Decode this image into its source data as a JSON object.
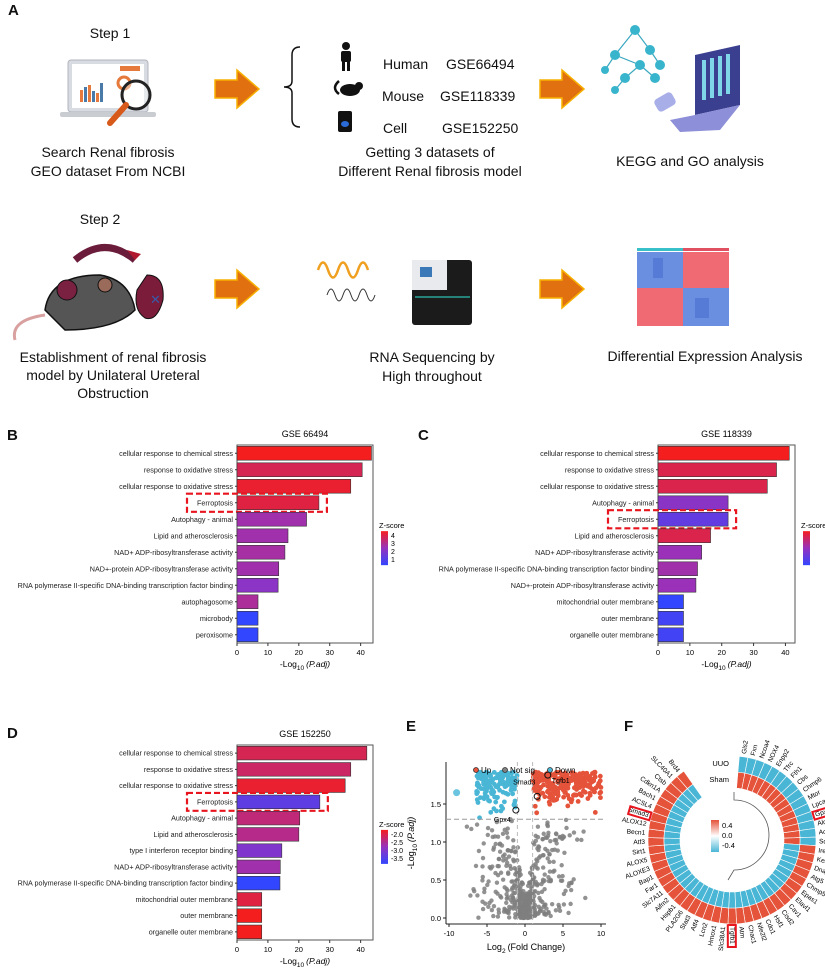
{
  "panel_labels": {
    "a": "A",
    "b": "B",
    "c": "C",
    "d": "D",
    "e": "E",
    "f": "F"
  },
  "workflow": {
    "step1": "Step 1",
    "step2": "Step 2",
    "search_line1": "Search Renal fibrosis",
    "search_line2": "GEO dataset From NCBI",
    "datasets": [
      {
        "organism": "Human",
        "id": "GSE66494",
        "icon": "human-icon"
      },
      {
        "organism": "Mouse",
        "id": "GSE118339",
        "icon": "mouse-icon"
      },
      {
        "organism": "Cell",
        "id": "GSE152250",
        "icon": "cell-dish-icon"
      }
    ],
    "datasets_line1": "Getting 3 datasets of",
    "datasets_line2": "Different Renal fibrosis model",
    "kegg": "KEGG and GO analysis",
    "uuo_line1": "Establishment of renal fibrosis",
    "uuo_line2": "model by Unilateral Ureteral",
    "uuo_line3": "Obstruction",
    "rnaseq_line1": "RNA Sequencing by",
    "rnaseq_line2": "High throughout",
    "dea": "Differential Expression Analysis",
    "arrow_color": "#e07010"
  },
  "chart_data": [
    {
      "id": "B",
      "type": "bar",
      "orientation": "horizontal",
      "title": "GSE 66494",
      "xlabel_main": "-Log",
      "xlabel_sub": "10",
      "xlabel_tail": "(P.adj)",
      "xlim": [
        0,
        44
      ],
      "xticks": [
        "0",
        "10",
        "20",
        "30",
        "40"
      ],
      "categories": [
        "cellular response to chemical stress",
        "response to oxidative stress",
        "cellular response to oxidative stress",
        "Ferroptosis",
        "Autophagy - animal",
        "Lipid and atherosclerosis",
        "NAD+ ADP-ribosyltransferase activity",
        "NAD+-protein ADP-ribosyltransferase activity",
        "RNA polymerase II-specific DNA-binding transcription factor binding",
        "autophagosome",
        "microbody",
        "peroxisome"
      ],
      "values": [
        43.5,
        40.5,
        36.8,
        26.5,
        22.5,
        16.5,
        15.5,
        13.5,
        13.3,
        6.8,
        6.8,
        6.8
      ],
      "zscore": [
        4.6,
        4.0,
        4.4,
        4.2,
        3.0,
        3.0,
        3.1,
        3.0,
        2.6,
        3.2,
        1.0,
        1.0
      ],
      "legend_title": "Z-score",
      "legend_ticks": [
        "4",
        "3",
        "2",
        "1"
      ],
      "zlim": [
        1,
        4.6
      ],
      "highlight": "Ferroptosis"
    },
    {
      "id": "C",
      "type": "bar",
      "orientation": "horizontal",
      "title": "GSE 118339",
      "xlabel_main": "-Log",
      "xlabel_sub": "10",
      "xlabel_tail": "(P.adj)",
      "xlim": [
        0,
        43
      ],
      "xticks": [
        "0",
        "10",
        "20",
        "30",
        "40"
      ],
      "categories": [
        "cellular response to chemical stress",
        "response to oxidative stress",
        "cellular response to oxidative stress",
        "Autophagy - animal",
        "Ferroptosis",
        "Lipid and atherosclerosis",
        "NAD+ ADP-ribosyltransferase activity",
        "RNA polymerase II-specific DNA-binding transcription factor binding",
        "NAD+-protein ADP-ribosyltransferase activity",
        "mitochondrial outer membrane",
        "outer membrane",
        "organelle outer membrane"
      ],
      "values": [
        41.2,
        37.2,
        34.3,
        22.0,
        22.0,
        16.5,
        13.7,
        12.4,
        11.9,
        8.0,
        8.0,
        8.0
      ],
      "zscore": [
        6.0,
        5.3,
        5.3,
        3.2,
        2.2,
        5.3,
        3.6,
        3.8,
        3.6,
        1.0,
        1.4,
        1.4
      ],
      "legend_title": "Z-score",
      "legend_ticks": [],
      "zlim": [
        1,
        6
      ],
      "highlight": "Ferroptosis"
    },
    {
      "id": "D",
      "type": "bar",
      "orientation": "horizontal",
      "title": "GSE 152250",
      "xlabel_main": "-Log",
      "xlabel_sub": "10",
      "xlabel_tail": "(P.adj)",
      "xlim": [
        0,
        44
      ],
      "xticks": [
        "0",
        "10",
        "20",
        "30",
        "40"
      ],
      "categories": [
        "cellular response to chemical stress",
        "response to oxidative stress",
        "cellular response to oxidative stress",
        "Ferroptosis",
        "Autophagy - animal",
        "Lipid and atherosclerosis",
        "type I interferon receptor binding",
        "NAD+ ADP-ribosyltransferase activity",
        "RNA polymerase II-specific DNA-binding transcription factor binding",
        "mitochondrial outer membrane",
        "outer membrane",
        "organelle outer membrane"
      ],
      "values": [
        42.0,
        36.8,
        35.0,
        26.8,
        20.3,
        20.0,
        14.5,
        14.0,
        13.9,
        8.0,
        8.0,
        8.0
      ],
      "zscore": [
        -2.2,
        -2.3,
        -2.0,
        -3.3,
        -2.4,
        -2.5,
        -3.0,
        -2.7,
        -3.7,
        -2.1,
        -1.9,
        -1.9
      ],
      "legend_title": "Z-score",
      "legend_ticks": [
        "-2.0",
        "-2.5",
        "-3.0",
        "-3.5"
      ],
      "zlim": [
        -3.7,
        -1.9
      ],
      "highlight": "Ferroptosis"
    },
    {
      "id": "E",
      "type": "scatter",
      "subtype": "volcano",
      "xlabel_main": "Log",
      "xlabel_sub": "2",
      "xlabel_tail": "(Fold Change)",
      "ylabel_main": "-Log",
      "ylabel_sub": "10",
      "ylabel_tail": "(P.adj)",
      "xlim": [
        -10.5,
        10.5
      ],
      "ylim": [
        0,
        1.95
      ],
      "xticks": [
        -10,
        -5,
        0,
        5,
        10
      ],
      "yticks": [
        "0.0",
        "0.5",
        "1.0",
        "1.5"
      ],
      "ytick_values": [
        0,
        0.5,
        1.0,
        1.5
      ],
      "thresholds": {
        "padj_line": 1.3,
        "fc_lines": [
          -1,
          1
        ]
      },
      "legend": [
        {
          "label": "Up",
          "color": "#e5533a"
        },
        {
          "label": "Not sig",
          "color": "#808080"
        },
        {
          "label": "Down",
          "color": "#4ab6d6"
        }
      ],
      "labeled_points": [
        {
          "gene": "Tgfb1",
          "x": 3.0,
          "y": 1.88
        },
        {
          "gene": "Smad3",
          "x": 1.6,
          "y": 1.6
        },
        {
          "gene": "Gpx4",
          "x": -1.2,
          "y": 1.42
        }
      ]
    },
    {
      "id": "F",
      "type": "heatmap",
      "subtype": "circular",
      "rows": [
        "UUO",
        "Sham"
      ],
      "legend_ticks": [
        "0.4",
        "0.0",
        "-0.4"
      ],
      "color_high": "#e5533a",
      "color_mid": "#ffffff",
      "color_low": "#4ab6d6",
      "genes": [
        "Gls2",
        "Fxn",
        "Ncoa4",
        "NOX4",
        "Enpp2",
        "Tfrc",
        "Fth1",
        "Cbs",
        "Chmp6",
        "Mtor",
        "Lpcat3",
        "Gpx4",
        "Alox15",
        "Aco1",
        "Sqstm1",
        "Ireb2",
        "Keap1",
        "Dnajb6",
        "Atg5",
        "Chmp5",
        "Epas1",
        "Elavl1",
        "Cav1",
        "Cisd2",
        "Hsf1",
        "Cdo1",
        "Nfe2l2",
        "Chac1",
        "Atm",
        "Tgfb1",
        "Slc38A1",
        "Hmox1",
        "Lcn2",
        "Atf4",
        "Stat3",
        "PLA2G6",
        "Hspb1",
        "Aifm2",
        "Slc7A11",
        "Far1",
        "Bap1",
        "ALOXE3",
        "ALOX5",
        "Sirt1",
        "Atf3",
        "Becn1",
        "ALOX12",
        "Smad3",
        "ACSL4",
        "Bach1",
        "Cdkn1A",
        "Ctsb",
        "SLC40A1",
        "Brd4"
      ],
      "uuo": [
        -0.45,
        -0.45,
        -0.45,
        -0.45,
        -0.45,
        -0.45,
        -0.45,
        -0.45,
        -0.45,
        -0.45,
        -0.45,
        -0.45,
        -0.45,
        -0.45,
        -0.45,
        0.45,
        0.45,
        0.45,
        0.45,
        0.45,
        0.45,
        0.45,
        0.45,
        0.45,
        0.45,
        0.45,
        0.45,
        0.45,
        0.45,
        0.45,
        0.45,
        0.45,
        0.45,
        0.45,
        0.45,
        0.45,
        0.45,
        0.45,
        0.45,
        0.45,
        0.45,
        0.45,
        0.45,
        0.45,
        0.45,
        0.45,
        0.45,
        0.45,
        0.45,
        0.45,
        0.45,
        0.45,
        0.45,
        0.45
      ],
      "sham": [
        0.45,
        0.45,
        0.45,
        0.45,
        0.45,
        0.45,
        0.45,
        0.45,
        0.45,
        0.45,
        0.45,
        0.45,
        0.45,
        0.45,
        0.45,
        -0.45,
        -0.45,
        -0.45,
        -0.45,
        -0.45,
        -0.45,
        -0.45,
        -0.45,
        -0.45,
        -0.45,
        -0.45,
        -0.45,
        -0.45,
        -0.45,
        -0.45,
        -0.45,
        -0.45,
        -0.45,
        -0.45,
        -0.45,
        -0.45,
        -0.45,
        -0.45,
        -0.45,
        -0.45,
        -0.45,
        -0.45,
        -0.45,
        -0.45,
        -0.45,
        -0.45,
        -0.45,
        -0.45,
        -0.45,
        -0.45,
        -0.45,
        -0.45,
        -0.45,
        -0.45
      ],
      "highlight": [
        "Smad3",
        "Gpx4",
        "Tgfb1"
      ]
    }
  ]
}
